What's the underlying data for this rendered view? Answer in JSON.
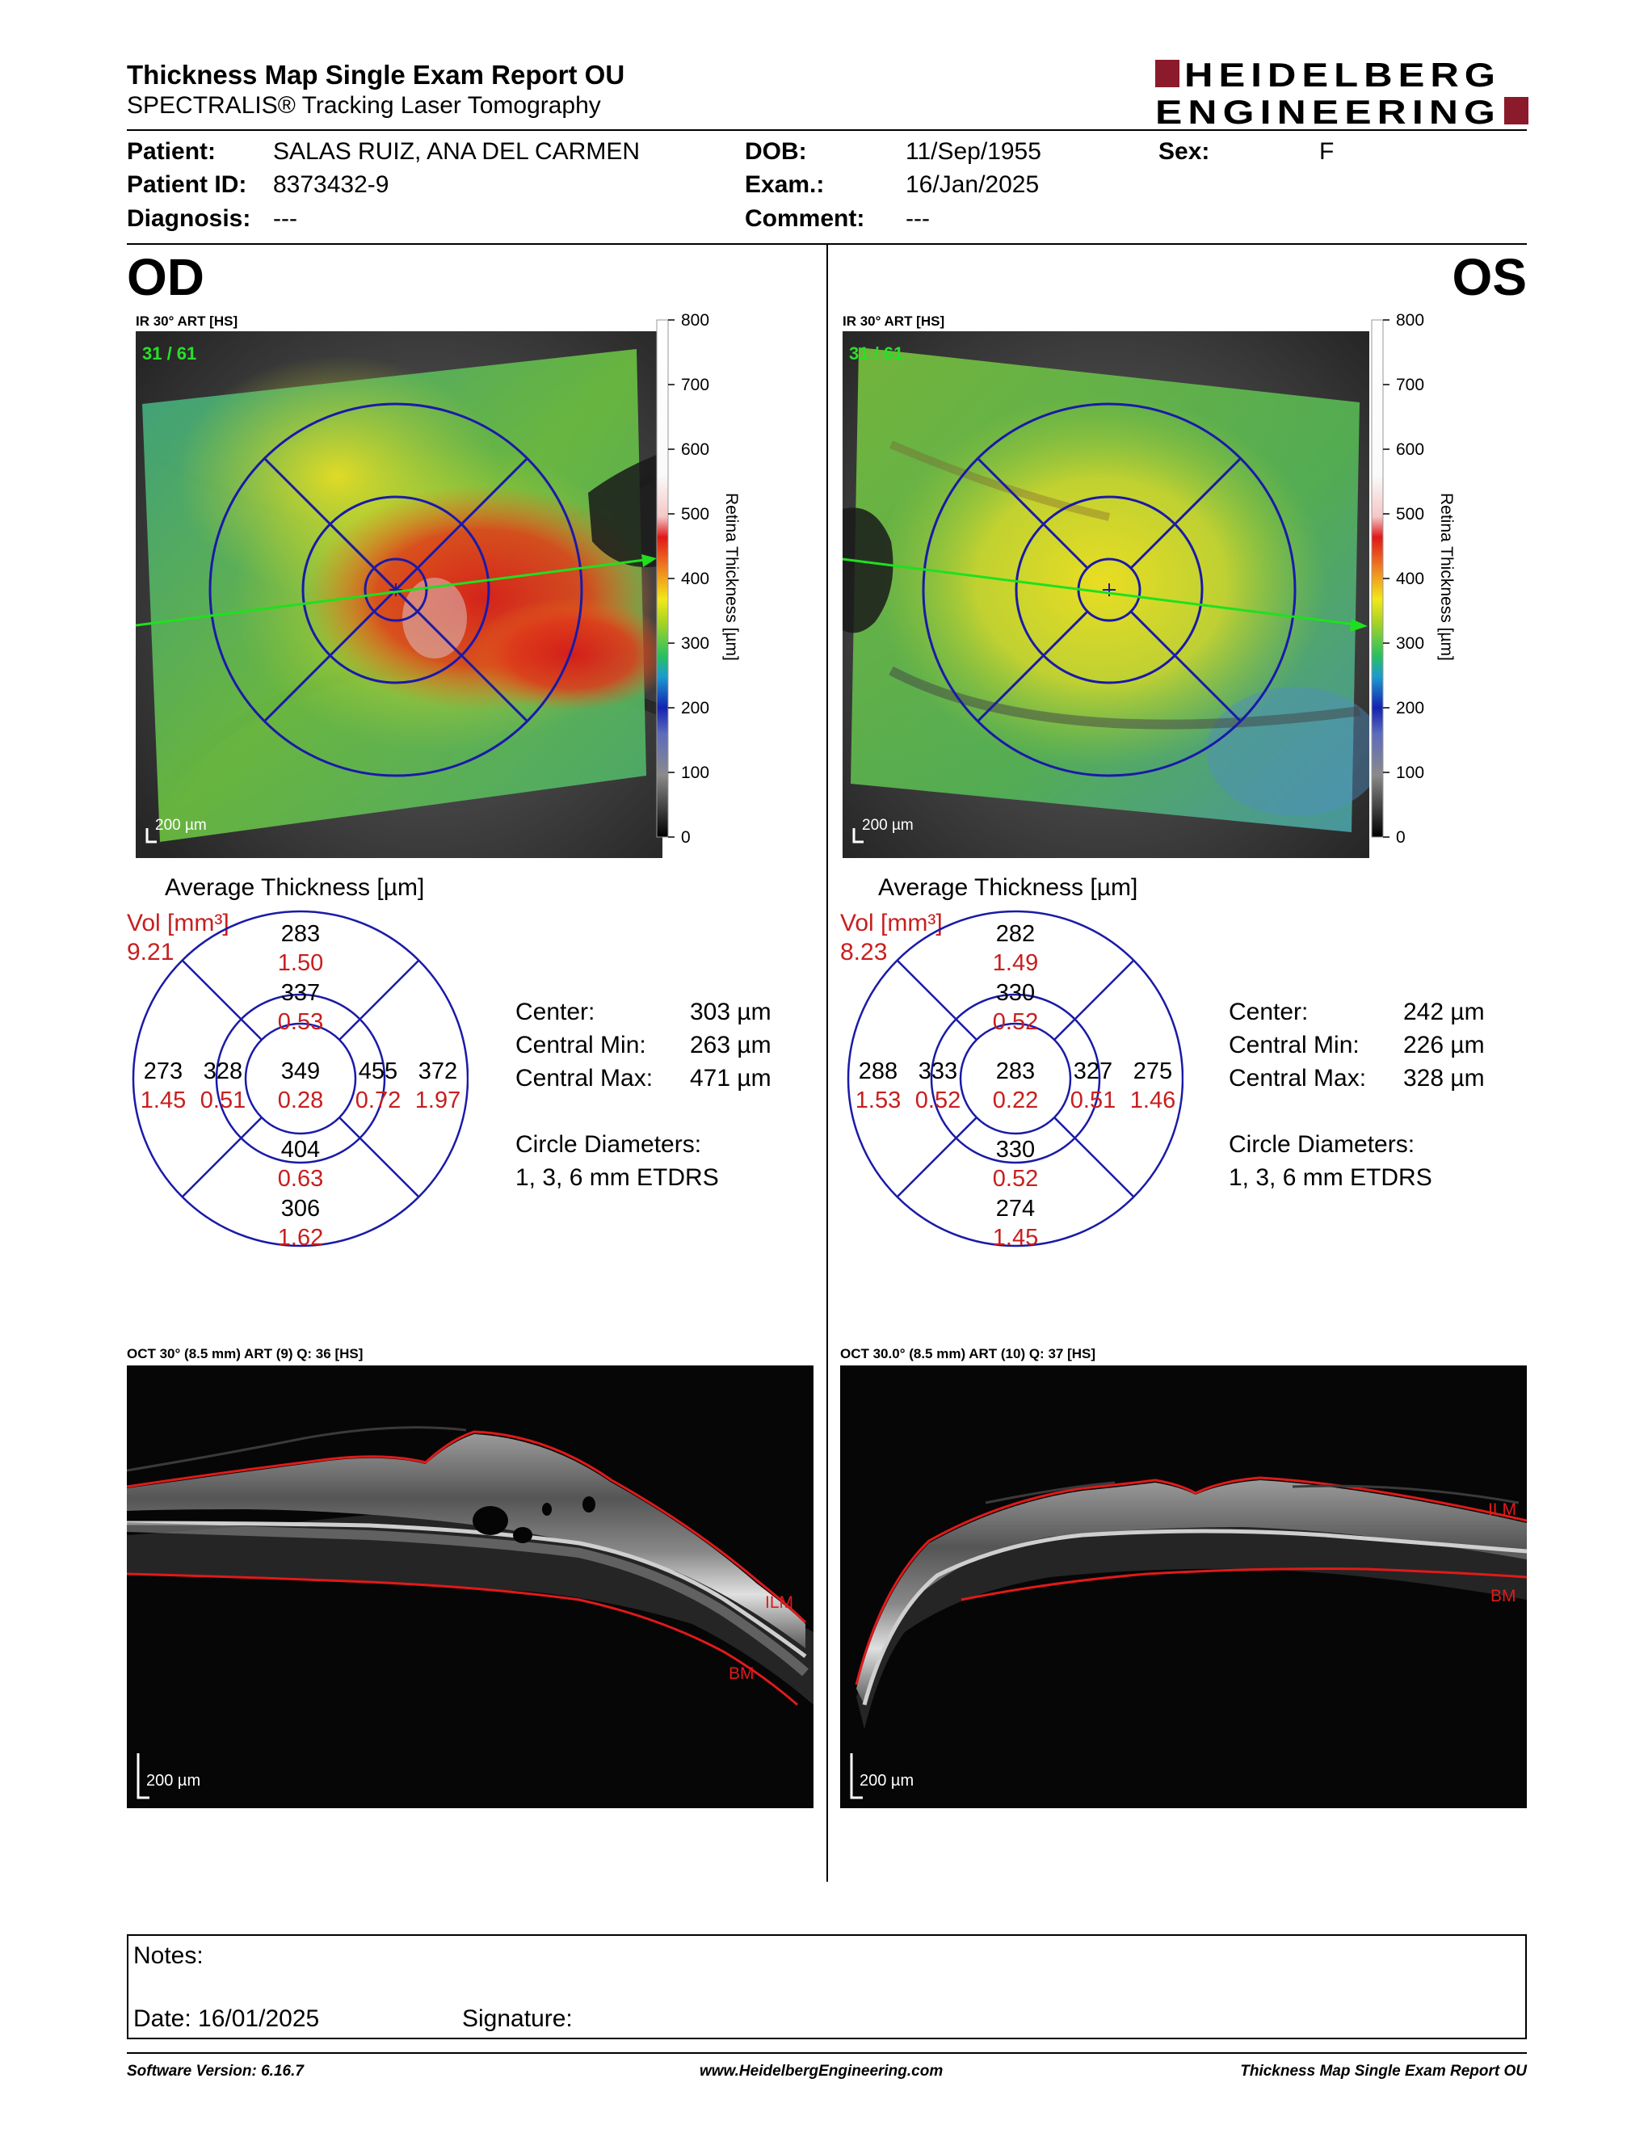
{
  "header": {
    "title": "Thickness Map Single Exam Report OU",
    "subtitle": "SPECTRALIS® Tracking Laser Tomography",
    "logo_line1": "HEIDELBERG",
    "logo_line2": "ENGINEERING",
    "brand_color": "#8b1a2b"
  },
  "patient": {
    "patient_label": "Patient:",
    "patient": "SALAS RUIZ, ANA DEL CARMEN",
    "id_label": "Patient ID:",
    "id": "8373432-9",
    "diagnosis_label": "Diagnosis:",
    "diagnosis": "---",
    "dob_label": "DOB:",
    "dob": "11/Sep/1955",
    "exam_label": "Exam.:",
    "exam": "16/Jan/2025",
    "comment_label": "Comment:",
    "comment": "---",
    "sex_label": "Sex:",
    "sex": "F"
  },
  "od": {
    "eye": "OD",
    "ir_label": "IR 30° ART [HS]",
    "frame": "31 / 61",
    "scale": "200 µm",
    "avg_title": "Average Thickness [µm]",
    "vol_label": "Vol [mm³]",
    "vol_total": "9.21",
    "sectors": {
      "outer_sup": {
        "t": "283",
        "v": "1.50"
      },
      "inner_sup": {
        "t": "337",
        "v": "0.53"
      },
      "outer_left": {
        "t": "273",
        "v": "1.45"
      },
      "inner_left": {
        "t": "328",
        "v": "0.51"
      },
      "center": {
        "t": "349",
        "v": "0.28"
      },
      "inner_right": {
        "t": "455",
        "v": "0.72"
      },
      "outer_right": {
        "t": "372",
        "v": "1.97"
      },
      "inner_inf": {
        "t": "404",
        "v": "0.63"
      },
      "outer_inf": {
        "t": "306",
        "v": "1.62"
      }
    },
    "center_label": "Center:",
    "center_val": "303 µm",
    "cmin_label": "Central Min:",
    "cmin_val": "263 µm",
    "cmax_label": "Central Max:",
    "cmax_val": "471 µm",
    "circ_label": "Circle Diameters:",
    "circ_val": "1, 3, 6 mm ETDRS",
    "oct_label": "OCT 30° (8.5 mm) ART (9) Q: 36 [HS]",
    "ilm": "ILM",
    "bm": "BM",
    "oct_scale": "200 µm"
  },
  "os": {
    "eye": "OS",
    "ir_label": "IR 30° ART [HS]",
    "frame": "31 / 61",
    "scale": "200 µm",
    "avg_title": "Average Thickness [µm]",
    "vol_label": "Vol [mm³]",
    "vol_total": "8.23",
    "sectors": {
      "outer_sup": {
        "t": "282",
        "v": "1.49"
      },
      "inner_sup": {
        "t": "330",
        "v": "0.52"
      },
      "outer_left": {
        "t": "288",
        "v": "1.53"
      },
      "inner_left": {
        "t": "333",
        "v": "0.52"
      },
      "center": {
        "t": "283",
        "v": "0.22"
      },
      "inner_right": {
        "t": "327",
        "v": "0.51"
      },
      "outer_right": {
        "t": "275",
        "v": "1.46"
      },
      "inner_inf": {
        "t": "330",
        "v": "0.52"
      },
      "outer_inf": {
        "t": "274",
        "v": "1.45"
      }
    },
    "center_label": "Center:",
    "center_val": "242 µm",
    "cmin_label": "Central Min:",
    "cmin_val": "226 µm",
    "cmax_label": "Central Max:",
    "cmax_val": "328 µm",
    "circ_label": "Circle Diameters:",
    "circ_val": "1, 3, 6 mm ETDRS",
    "oct_label": "OCT 30.0° (8.5 mm) ART (10) Q: 37 [HS]",
    "ilm": "ILM",
    "bm": "BM",
    "oct_scale": "200 µm"
  },
  "colorbar": {
    "ticks": [
      "800",
      "700",
      "600",
      "500",
      "400",
      "300",
      "200",
      "100",
      "0"
    ],
    "label": "Retina Thickness [µm]"
  },
  "notes": {
    "notes_label": "Notes:",
    "date_label": "Date: 16/01/2025",
    "signature_label": "Signature:"
  },
  "footer": {
    "software": "Software Version: 6.16.7",
    "url": "www.HeidelbergEngineering.com",
    "report": "Thickness Map Single Exam Report OU"
  }
}
